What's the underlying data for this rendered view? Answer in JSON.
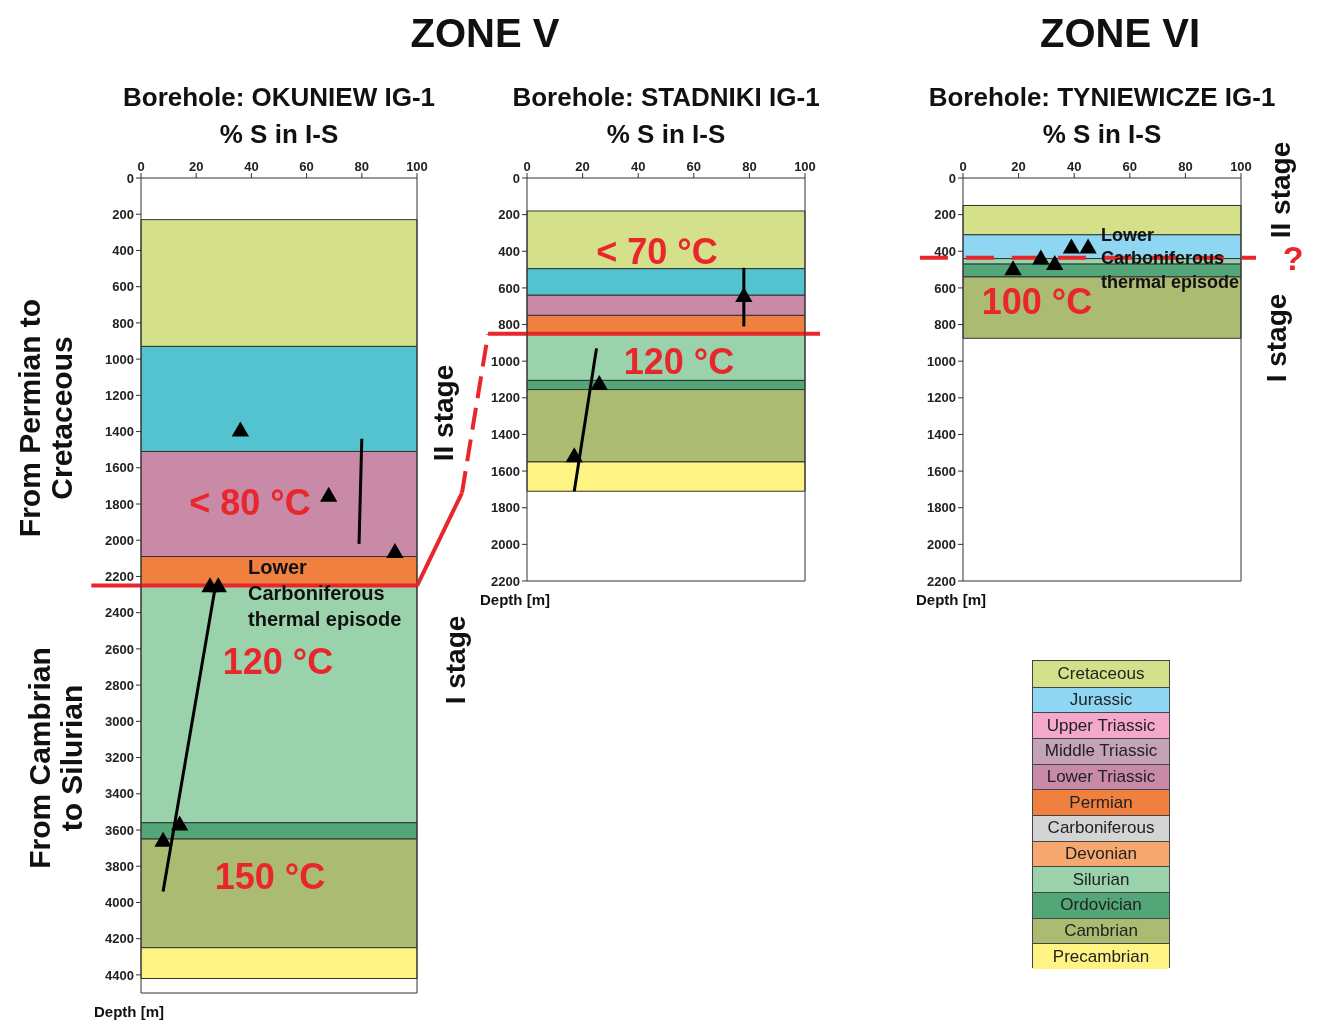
{
  "chart_data": [
    {
      "type": "scatter",
      "title": "Borehole: OKUNIEW IG-1",
      "xlabel": "% S in I-S",
      "ylabel": "Depth [m]",
      "xlim": [
        0,
        100
      ],
      "xticks": [
        0,
        20,
        40,
        60,
        80,
        100
      ],
      "ylim": [
        4500,
        0
      ],
      "yticks": [
        0,
        200,
        400,
        600,
        800,
        1000,
        1200,
        1400,
        1600,
        1800,
        2000,
        2200,
        2400,
        2600,
        2800,
        3000,
        3200,
        3400,
        3600,
        3800,
        4000,
        4200,
        4400
      ],
      "series": [
        {
          "type": "scatter",
          "marker": "triangle",
          "color": "#000000",
          "x": [
            36,
            68,
            92,
            25,
            28,
            14,
            8
          ],
          "values": [
            1400,
            1760,
            2070,
            2260,
            2260,
            3575,
            3665
          ]
        },
        {
          "type": "line",
          "color": "#000000",
          "x": [
            80,
            79
          ],
          "values": [
            1440,
            2020
          ]
        },
        {
          "type": "line",
          "color": "#000000",
          "x": [
            27,
            8
          ],
          "values": [
            2250,
            3940
          ]
        }
      ],
      "bands": [
        {
          "axis": "y",
          "from": 230,
          "to": 930,
          "color": "#d4e08a"
        },
        {
          "axis": "y",
          "from": 930,
          "to": 1510,
          "color": "#52c3cf"
        },
        {
          "axis": "y",
          "from": 1510,
          "to": 2090,
          "color": "#c98aa8"
        },
        {
          "axis": "y",
          "from": 2090,
          "to": 2250,
          "color": "#f08040"
        },
        {
          "axis": "y",
          "from": 2250,
          "to": 3560,
          "color": "#9ad3ab"
        },
        {
          "axis": "y",
          "from": 3560,
          "to": 3650,
          "color": "#52a678"
        },
        {
          "axis": "y",
          "from": 3650,
          "to": 4250,
          "color": "#abbb72"
        },
        {
          "axis": "y",
          "from": 4250,
          "to": 4420,
          "color": "#fff384"
        }
      ],
      "ref_lines": [
        {
          "axis": "y",
          "value": 2250,
          "color": "#e8262b",
          "line_style": "solid"
        }
      ],
      "annotations": [
        "ZONE V",
        "From Permian to Cretaceous",
        "From Cambrian to Silurian",
        "< 80 °C",
        "Lower Carboniferous thermal episode",
        "120 °C",
        "150 °C"
      ]
    },
    {
      "type": "scatter",
      "title": "Borehole: STADNIKI IG-1",
      "xlabel": "% S in I-S",
      "ylabel": "Depth [m]",
      "xlim": [
        0,
        100
      ],
      "xticks": [
        0,
        20,
        40,
        60,
        80,
        100
      ],
      "ylim": [
        2200,
        0
      ],
      "yticks": [
        0,
        200,
        400,
        600,
        800,
        1000,
        1200,
        1400,
        1600,
        1800,
        2000,
        2200
      ],
      "series": [
        {
          "type": "scatter",
          "marker": "triangle",
          "color": "#000000",
          "x": [
            78,
            26,
            17
          ],
          "values": [
            650,
            1130,
            1525
          ]
        },
        {
          "type": "line",
          "color": "#000000",
          "x": [
            78,
            78
          ],
          "values": [
            490,
            810
          ]
        },
        {
          "type": "line",
          "color": "#000000",
          "x": [
            25,
            17
          ],
          "values": [
            930,
            1710
          ]
        }
      ],
      "bands": [
        {
          "axis": "y",
          "from": 180,
          "to": 495,
          "color": "#d4e08a"
        },
        {
          "axis": "y",
          "from": 495,
          "to": 640,
          "color": "#52c3cf"
        },
        {
          "axis": "y",
          "from": 640,
          "to": 750,
          "color": "#c98aa8"
        },
        {
          "axis": "y",
          "from": 750,
          "to": 850,
          "color": "#f08040"
        },
        {
          "axis": "y",
          "from": 850,
          "to": 1105,
          "color": "#9ad3ab"
        },
        {
          "axis": "y",
          "from": 1105,
          "to": 1155,
          "color": "#52a678"
        },
        {
          "axis": "y",
          "from": 1155,
          "to": 1550,
          "color": "#abbb72"
        },
        {
          "axis": "y",
          "from": 1550,
          "to": 1710,
          "color": "#fff384"
        }
      ],
      "ref_lines": [
        {
          "axis": "y",
          "value": 850,
          "color": "#e8262b",
          "line_style": "solid"
        }
      ],
      "annotations": [
        "II stage",
        "I stage",
        "< 70 °C",
        "120 °C"
      ]
    },
    {
      "type": "scatter",
      "title": "Borehole: TYNIEWICZE IG-1",
      "xlabel": "% S in I-S",
      "ylabel": "Depth [m]",
      "xlim": [
        0,
        100
      ],
      "xticks": [
        0,
        20,
        40,
        60,
        80,
        100
      ],
      "ylim": [
        2200,
        0
      ],
      "yticks": [
        0,
        200,
        400,
        600,
        800,
        1000,
        1200,
        1400,
        1600,
        1800,
        2000,
        2200
      ],
      "series": [
        {
          "type": "scatter",
          "marker": "triangle",
          "color": "#000000",
          "x": [
            39,
            45,
            28,
            33,
            18
          ],
          "values": [
            385,
            385,
            445,
            475,
            503
          ]
        }
      ],
      "bands": [
        {
          "axis": "y",
          "from": 150,
          "to": 310,
          "color": "#d4e08a"
        },
        {
          "axis": "y",
          "from": 310,
          "to": 440,
          "color": "#8fd6f2"
        },
        {
          "axis": "y",
          "from": 440,
          "to": 470,
          "color": "#9ad3ab"
        },
        {
          "axis": "y",
          "from": 470,
          "to": 540,
          "color": "#52a678"
        },
        {
          "axis": "y",
          "from": 540,
          "to": 875,
          "color": "#abbb72"
        }
      ],
      "ref_lines": [
        {
          "axis": "y",
          "value": 435,
          "color": "#e8262b",
          "line_style": "dashed",
          "label": "?"
        }
      ],
      "annotations": [
        "ZONE VI",
        "Lower Carboniferous thermal episode",
        "100 °C",
        "II stage",
        "I stage"
      ]
    },
    {
      "type": "other",
      "categories": [
        "Cretaceous",
        "Jurassic",
        "Upper Triassic",
        "Middle Triassic",
        "Lower Triassic",
        "Permian",
        "Carboniferous",
        "Devonian",
        "Silurian",
        "Ordovician",
        "Cambrian",
        "Precambrian"
      ],
      "colors": [
        "#d4e08a",
        "#8fd6f2",
        "#f5a8cc",
        "#c4a2b8",
        "#c98aa8",
        "#f08040",
        "#d4d4d4",
        "#f6a870",
        "#9ad3ab",
        "#52a678",
        "#abbb72",
        "#fff384"
      ]
    }
  ]
}
